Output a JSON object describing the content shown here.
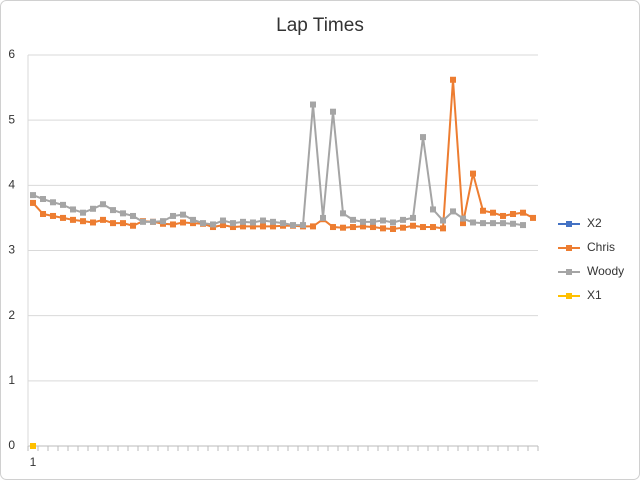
{
  "chart_data": {
    "type": "line",
    "title": "Lap Times",
    "categories": [
      "1",
      null,
      null,
      null,
      null,
      null,
      null,
      null,
      null,
      null,
      null,
      null,
      null,
      null,
      null,
      null,
      null,
      null,
      null,
      null,
      null,
      null,
      null,
      null,
      null,
      null,
      null,
      null,
      null,
      null,
      null,
      null,
      null,
      null,
      null,
      null,
      null,
      null,
      null,
      null,
      null,
      null,
      null,
      null,
      null,
      null,
      null,
      null,
      null,
      null,
      null
    ],
    "series": [
      {
        "name": "X2",
        "color": "#4472c4",
        "values": [
          null,
          null,
          null,
          null,
          null,
          null,
          null,
          null,
          null,
          null,
          null,
          null,
          null,
          null,
          null,
          null,
          null,
          null,
          null,
          null,
          null,
          null,
          null,
          null,
          null,
          null,
          null,
          null,
          null,
          null,
          null,
          null,
          null,
          null,
          null,
          null,
          null,
          null,
          null,
          null,
          null,
          null,
          null,
          null,
          null,
          null,
          null,
          null,
          null,
          null,
          null
        ]
      },
      {
        "name": "Chris",
        "color": "#ed7d31",
        "values": [
          3.73,
          3.56,
          3.53,
          3.5,
          3.47,
          3.45,
          3.43,
          3.47,
          3.42,
          3.42,
          3.38,
          3.45,
          3.44,
          3.41,
          3.4,
          3.43,
          3.42,
          3.41,
          3.36,
          3.39,
          3.36,
          3.37,
          3.37,
          3.37,
          3.37,
          3.38,
          3.38,
          3.37,
          3.37,
          3.48,
          3.36,
          3.35,
          3.36,
          3.37,
          3.36,
          3.34,
          3.33,
          3.35,
          3.38,
          3.36,
          3.36,
          3.34,
          5.62,
          3.42,
          4.18,
          3.61,
          3.58,
          3.53,
          3.56,
          3.58,
          3.5
        ]
      },
      {
        "name": "Woody",
        "color": "#a5a5a5",
        "values": [
          3.85,
          3.79,
          3.74,
          3.7,
          3.63,
          3.58,
          3.64,
          3.71,
          3.62,
          3.57,
          3.53,
          3.44,
          3.44,
          3.45,
          3.53,
          3.55,
          3.47,
          3.42,
          3.4,
          3.46,
          3.42,
          3.44,
          3.43,
          3.46,
          3.44,
          3.42,
          3.39,
          3.39,
          5.24,
          3.5,
          5.13,
          3.57,
          3.47,
          3.44,
          3.44,
          3.46,
          3.43,
          3.47,
          3.5,
          4.74,
          3.63,
          3.46,
          3.6,
          3.49,
          3.43,
          3.42,
          3.42,
          3.42,
          3.41,
          3.39,
          null
        ]
      },
      {
        "name": "X1",
        "color": "#ffc000",
        "values": [
          0,
          null,
          null,
          null,
          null,
          null,
          null,
          null,
          null,
          null,
          null,
          null,
          null,
          null,
          null,
          null,
          null,
          null,
          null,
          null,
          null,
          null,
          null,
          null,
          null,
          null,
          null,
          null,
          null,
          null,
          null,
          null,
          null,
          null,
          null,
          null,
          null,
          null,
          null,
          null,
          null,
          null,
          null,
          null,
          null,
          null,
          null,
          null,
          null,
          null,
          null
        ]
      }
    ],
    "ylim": [
      0,
      6
    ],
    "yticks": [
      0,
      1,
      2,
      3,
      4,
      5,
      6
    ],
    "grid": true,
    "legend": "right"
  }
}
